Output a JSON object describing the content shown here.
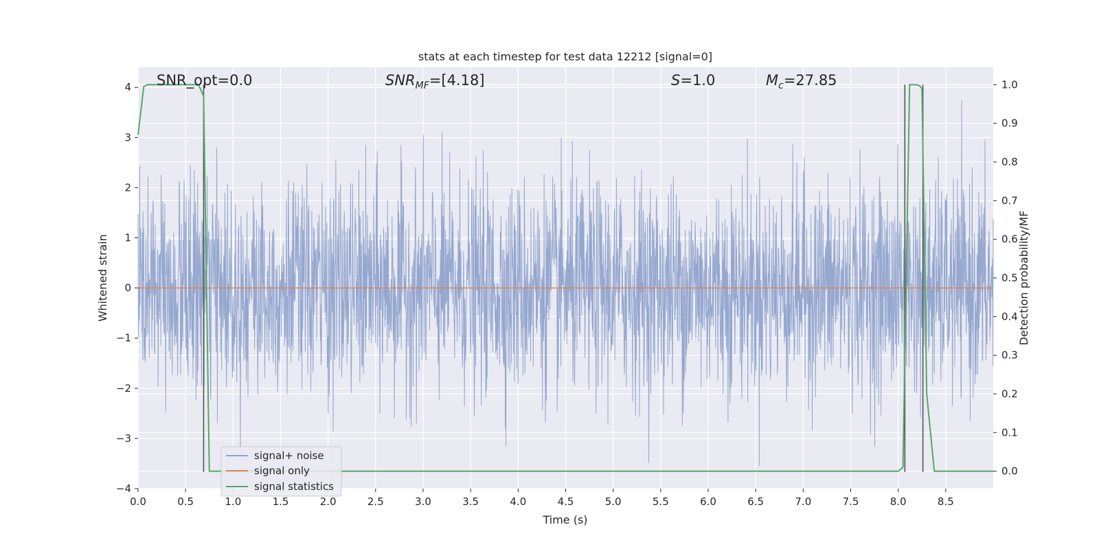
{
  "chart_data": {
    "type": "line",
    "title": "stats at each timestep for test data 12212 [signal=0]",
    "xlabel": "Time (s)",
    "ylabel": "Whitened strain",
    "y2label": "Detection probability/MF",
    "xlim": [
      0.0,
      9.0
    ],
    "ylim": [
      -4.0,
      4.4
    ],
    "y2lim": [
      -0.045,
      1.045
    ],
    "xticks": [
      "0.0",
      "0.5",
      "1.0",
      "1.5",
      "2.0",
      "2.5",
      "3.0",
      "3.5",
      "4.0",
      "4.5",
      "5.0",
      "5.5",
      "6.0",
      "6.5",
      "7.0",
      "7.5",
      "8.0",
      "8.5"
    ],
    "yticks": [
      "4",
      "3",
      "2",
      "1",
      "0",
      "−1",
      "−2",
      "−3",
      "−4"
    ],
    "y2ticks": [
      "1.0",
      "0.9",
      "0.8",
      "0.7",
      "0.6",
      "0.5",
      "0.4",
      "0.3",
      "0.2",
      "0.1",
      "0.0"
    ],
    "grid": true,
    "legend_position": "lower-left",
    "colors": {
      "noise": "#8fa3cc",
      "signal": "#dd8452",
      "stats": "#55a868",
      "vline": "#555555",
      "background": "#eaeaf2",
      "grid": "#ffffff"
    },
    "series": [
      {
        "name": "signal+ noise",
        "description_values": "dense whitened strain noise, amplitude mostly within ±2.3, peaks near ±4",
        "noise_amplitude_sigma": 1.0,
        "x_range": [
          0.0,
          9.0
        ]
      },
      {
        "name": "signal only",
        "x": [
          0.0,
          9.0
        ],
        "values": [
          0.0,
          0.0
        ]
      },
      {
        "name": "signal statistics",
        "axis": "right",
        "x": [
          0.0,
          0.06,
          0.1,
          0.15,
          0.3,
          0.45,
          0.6,
          0.64,
          0.69,
          0.75,
          1.0,
          2.0,
          4.0,
          6.0,
          8.0,
          8.05,
          8.12,
          8.18,
          8.22,
          8.25,
          8.3,
          8.38,
          8.5,
          9.0
        ],
        "values": [
          0.87,
          0.995,
          1.0,
          1.0,
          1.0,
          1.0,
          1.0,
          0.998,
          0.97,
          0.0,
          0.0,
          0.0,
          0.0,
          0.0,
          0.0,
          0.01,
          1.0,
          1.0,
          0.998,
          0.99,
          0.2,
          0.0,
          0.0,
          0.0
        ]
      }
    ],
    "vlines": [
      {
        "x": 0.69,
        "ymin": -0.002,
        "ymax": 1.0
      },
      {
        "x": 8.07,
        "ymin": -0.002,
        "ymax": 1.0
      },
      {
        "x": 8.26,
        "ymin": -0.002,
        "ymax": 1.0
      }
    ],
    "annotations": {
      "snr_opt": "SNR_opt=0.0",
      "snr_mf_main": "SNR",
      "snr_mf_sub": "MF",
      "snr_mf_value": "=[4.18]",
      "s_main": "S",
      "s_value": "=1.0",
      "mc_main": "M",
      "mc_sub": "c",
      "mc_value": "=27.85"
    }
  }
}
